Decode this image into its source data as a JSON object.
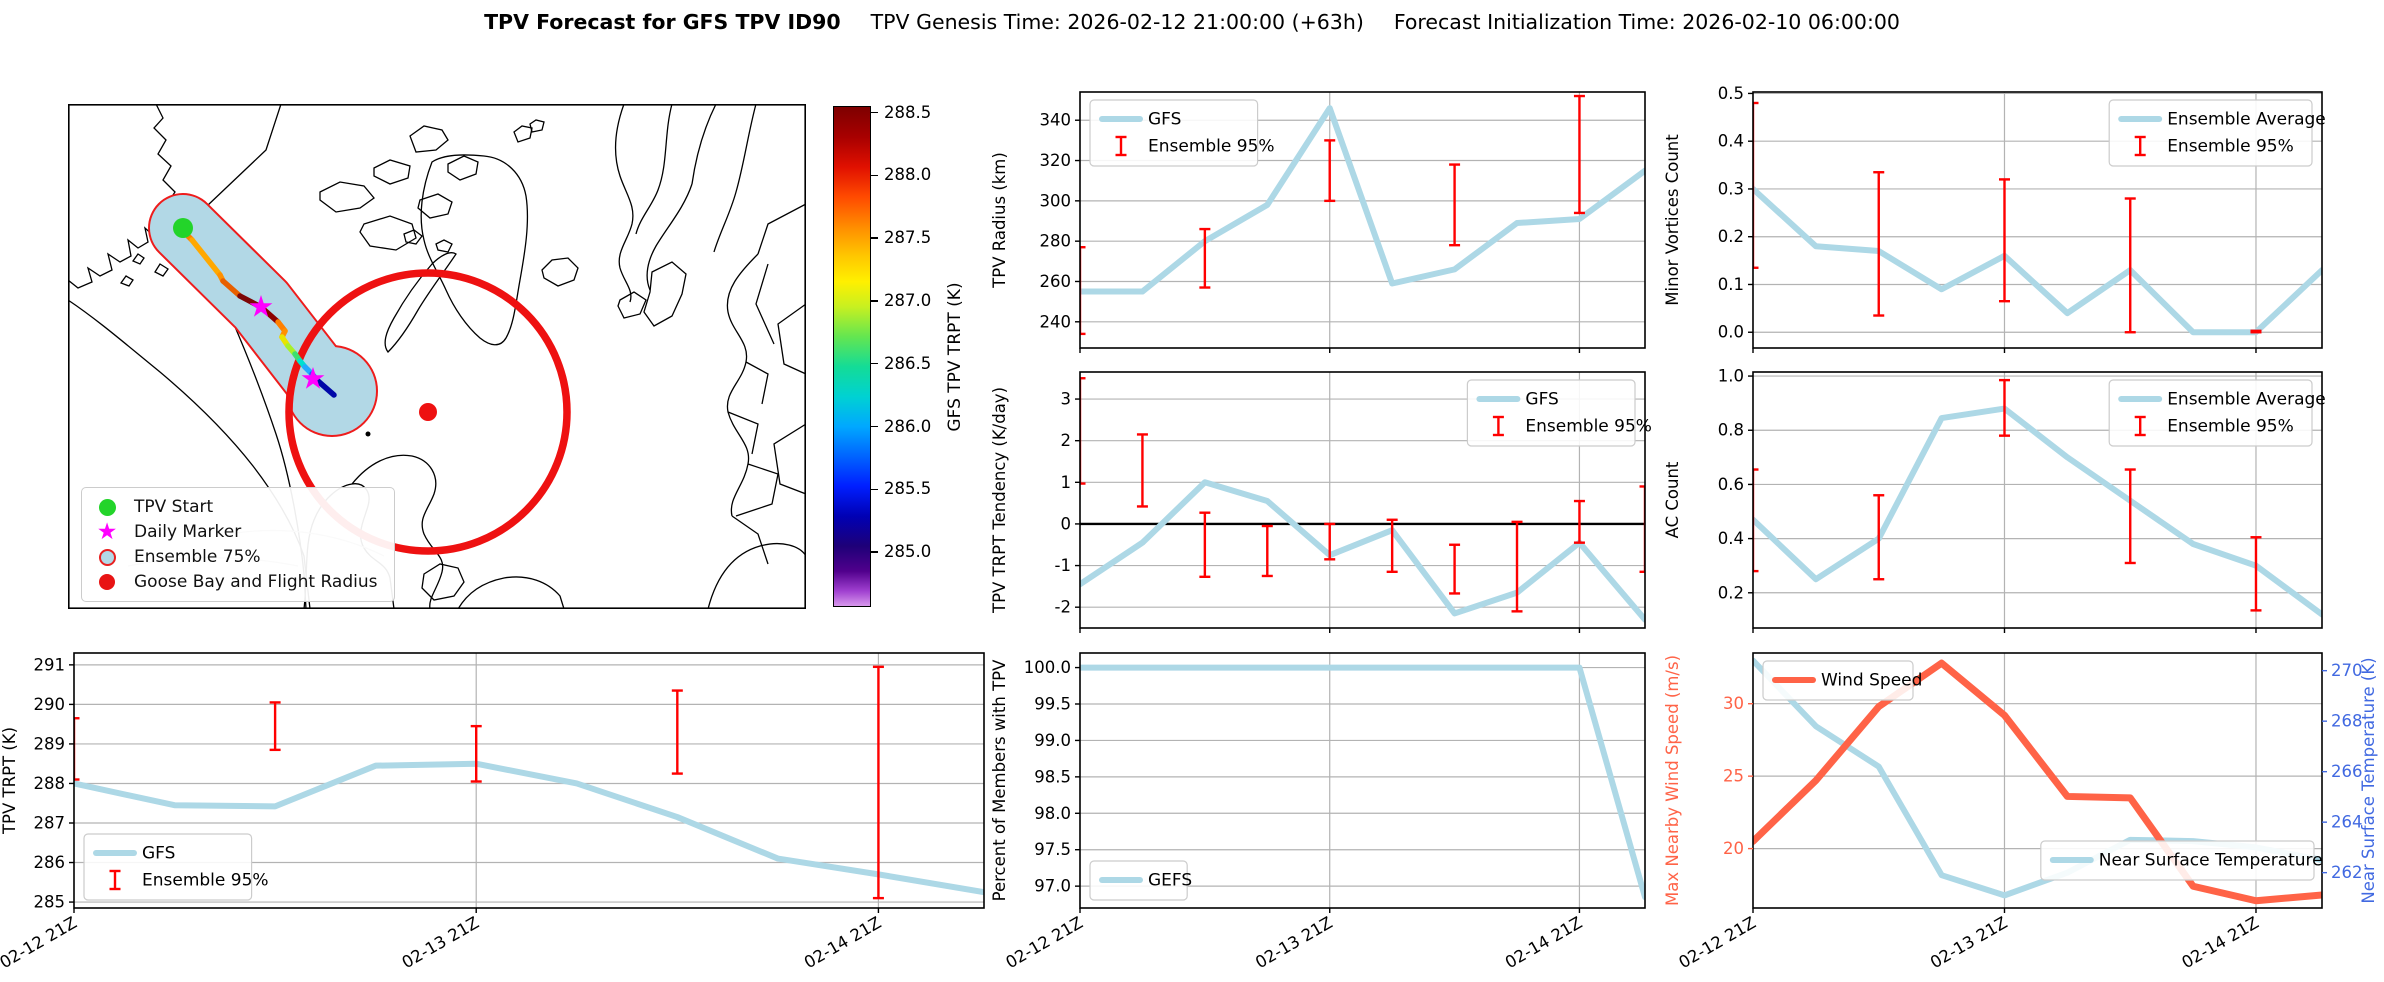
{
  "title": {
    "main": "TPV Forecast for GFS TPV ID90",
    "genesis": "TPV Genesis Time: 2026-02-12 21:00:00 (+63h)",
    "init": "Forecast Initialization Time: 2026-02-10 06:00:00"
  },
  "map": {
    "legend": [
      {
        "label": "TPV Start",
        "marker": "tpv-start-icon"
      },
      {
        "label": "Daily Marker",
        "marker": "daily-marker-icon"
      },
      {
        "label": "Ensemble 75%",
        "marker": "ensemble-75-icon"
      },
      {
        "label": "Goose Bay and Flight Radius",
        "marker": "goose-bay-icon"
      }
    ],
    "colors": {
      "tpv_start": "#23d42a",
      "daily_marker": "#ff00ff",
      "ensemble_fill": "#b2d8e6",
      "ensemble_edge": "#ff0000",
      "flight_radius": "#ee1111"
    }
  },
  "colorbar": {
    "label": "GFS TPV TRPT (K)",
    "ticks": [
      "288.5",
      "288.0",
      "287.5",
      "287.0",
      "286.5",
      "286.0",
      "285.5",
      "285.0"
    ]
  },
  "x_axis": {
    "tick_vals": [
      0,
      24,
      48
    ],
    "tick_labels": [
      "02-12 21Z",
      "02-13 21Z",
      "02-14 21Z"
    ],
    "grid_vals": [
      24,
      48
    ],
    "lim": [
      0,
      54.3
    ]
  },
  "chart_data": [
    {
      "id": "tpv_radius",
      "type": "line",
      "ylabel": "TPV Radius (km)",
      "ylim": [
        227,
        354
      ],
      "yticks": [
        "240",
        "260",
        "280",
        "300",
        "320",
        "340"
      ],
      "series": [
        {
          "name": "GFS",
          "color": "#add8e6",
          "width": 6,
          "x": [
            0,
            6,
            12,
            18,
            24,
            30,
            36,
            42,
            48,
            54.3
          ],
          "y": [
            255,
            255,
            280,
            298,
            346,
            259,
            266,
            289,
            291,
            315
          ]
        }
      ],
      "errorbars": {
        "name": "Ensemble 95%",
        "color": "#ff0000",
        "x": [
          0,
          12,
          24,
          36,
          48
        ],
        "lo": [
          234,
          257,
          300,
          278,
          294
        ],
        "hi": [
          277,
          286,
          330,
          318,
          352
        ]
      },
      "legends": [
        {
          "pos": "top-left",
          "entries": [
            {
              "label": "GFS",
              "swatch": "line",
              "color": "#add8e6"
            },
            {
              "label": "Ensemble 95%",
              "swatch": "errorbar",
              "color": "#ff0000"
            }
          ]
        }
      ],
      "show_xticklabels": false
    },
    {
      "id": "trpt_tendency",
      "type": "line",
      "ylabel": "TPV TRPT Tendency (K/day)",
      "ylim": [
        -2.5,
        3.65
      ],
      "yticks": [
        "-2",
        "-1",
        "0",
        "1",
        "2",
        "3"
      ],
      "zero_line": true,
      "series": [
        {
          "name": "GFS",
          "color": "#add8e6",
          "width": 6,
          "x": [
            0,
            6,
            12,
            18,
            24,
            30,
            36,
            42,
            48,
            54.3
          ],
          "y": [
            -1.45,
            -0.45,
            1.0,
            0.55,
            -0.75,
            -0.15,
            -2.15,
            -1.65,
            -0.45,
            -2.3
          ]
        }
      ],
      "errorbars": {
        "name": "Ensemble 95%",
        "color": "#ff0000",
        "x": [
          0,
          6,
          12,
          18,
          24,
          30,
          36,
          42,
          48,
          54.3
        ],
        "lo": [
          0.97,
          0.42,
          -1.27,
          -1.25,
          -0.85,
          -1.15,
          -1.67,
          -2.1,
          -0.45,
          -1.15
        ],
        "hi": [
          3.5,
          2.15,
          0.27,
          -0.05,
          0.0,
          0.1,
          -0.5,
          0.05,
          0.55,
          0.9
        ]
      },
      "legends": [
        {
          "pos": "top-right",
          "entries": [
            {
              "label": "GFS",
              "swatch": "line",
              "color": "#add8e6"
            },
            {
              "label": "Ensemble 95%",
              "swatch": "errorbar",
              "color": "#ff0000"
            }
          ]
        }
      ],
      "show_xticklabels": false
    },
    {
      "id": "minor_vortices",
      "type": "line",
      "ylabel": "Minor Vortices Count",
      "ylim": [
        -0.033,
        0.503
      ],
      "yticks": [
        "0.0",
        "0.1",
        "0.2",
        "0.3",
        "0.4",
        "0.5"
      ],
      "series": [
        {
          "name": "Ensemble Average",
          "color": "#add8e6",
          "width": 6,
          "x": [
            0,
            6,
            12,
            18,
            24,
            30,
            36,
            42,
            48,
            54.3
          ],
          "y": [
            0.3,
            0.18,
            0.17,
            0.09,
            0.16,
            0.04,
            0.13,
            0.0,
            0.0,
            0.13
          ]
        }
      ],
      "errorbars": {
        "name": "Ensemble 95%",
        "color": "#ff0000",
        "x": [
          0,
          12,
          24,
          36,
          48
        ],
        "lo": [
          0.135,
          0.035,
          0.065,
          0.0,
          0.0
        ],
        "hi": [
          0.48,
          0.335,
          0.32,
          0.28,
          0.003
        ]
      },
      "legends": [
        {
          "pos": "top-right",
          "entries": [
            {
              "label": "Ensemble Average",
              "swatch": "line",
              "color": "#add8e6"
            },
            {
              "label": "Ensemble 95%",
              "swatch": "errorbar",
              "color": "#ff0000"
            }
          ]
        }
      ],
      "show_xticklabels": false
    },
    {
      "id": "ac_count",
      "type": "line",
      "ylabel": "AC Count",
      "ylim": [
        0.07,
        1.015
      ],
      "yticks": [
        "0.2",
        "0.4",
        "0.6",
        "0.8",
        "1.0"
      ],
      "series": [
        {
          "name": "Ensemble Average",
          "color": "#add8e6",
          "width": 6,
          "x": [
            0,
            6,
            12,
            18,
            24,
            30,
            36,
            42,
            48,
            54.3
          ],
          "y": [
            0.47,
            0.25,
            0.4,
            0.845,
            0.88,
            0.7,
            0.54,
            0.38,
            0.3,
            0.12
          ]
        }
      ],
      "errorbars": {
        "name": "Ensemble 95%",
        "color": "#ff0000",
        "x": [
          0,
          12,
          24,
          36,
          48
        ],
        "lo": [
          0.28,
          0.25,
          0.78,
          0.31,
          0.135
        ],
        "hi": [
          0.655,
          0.56,
          0.985,
          0.655,
          0.405
        ]
      },
      "legends": [
        {
          "pos": "top-right",
          "entries": [
            {
              "label": "Ensemble Average",
              "swatch": "line",
              "color": "#add8e6"
            },
            {
              "label": "Ensemble 95%",
              "swatch": "errorbar",
              "color": "#ff0000"
            }
          ]
        }
      ],
      "show_xticklabels": false
    },
    {
      "id": "tpv_trpt",
      "type": "line",
      "ylabel": "TPV TRPT (K)",
      "ylim": [
        284.85,
        291.3
      ],
      "yticks": [
        "285",
        "286",
        "287",
        "288",
        "289",
        "290",
        "291"
      ],
      "series": [
        {
          "name": "GFS",
          "color": "#add8e6",
          "width": 6,
          "x": [
            0,
            6,
            12,
            18,
            24,
            30,
            36,
            42,
            48,
            54.3
          ],
          "y": [
            288.0,
            287.45,
            287.42,
            288.45,
            288.5,
            288.0,
            287.15,
            286.1,
            285.7,
            285.25
          ]
        }
      ],
      "errorbars": {
        "name": "Ensemble 95%",
        "color": "#ff0000",
        "x": [
          0,
          12,
          24,
          36,
          48
        ],
        "lo": [
          288.1,
          288.85,
          288.05,
          288.25,
          285.1
        ],
        "hi": [
          289.65,
          290.05,
          289.45,
          290.35,
          290.95
        ]
      },
      "legends": [
        {
          "pos": "bottom-left",
          "entries": [
            {
              "label": "GFS",
              "swatch": "line",
              "color": "#add8e6"
            },
            {
              "label": "Ensemble 95%",
              "swatch": "errorbar",
              "color": "#ff0000"
            }
          ]
        }
      ],
      "show_xticklabels": true
    },
    {
      "id": "percent_members",
      "type": "line",
      "ylabel": "Percent of Members with TPV",
      "ylim": [
        96.7,
        100.2
      ],
      "yticks": [
        "97.0",
        "97.5",
        "98.0",
        "98.5",
        "99.0",
        "99.5",
        "100.0"
      ],
      "series": [
        {
          "name": "GEFS",
          "color": "#add8e6",
          "width": 6,
          "x": [
            0,
            6,
            12,
            18,
            24,
            30,
            36,
            42,
            48,
            54.3
          ],
          "y": [
            100,
            100,
            100,
            100,
            100,
            100,
            100,
            100,
            100,
            96.85
          ]
        }
      ],
      "legends": [
        {
          "pos": "bottom-left",
          "entries": [
            {
              "label": "GEFS",
              "swatch": "line",
              "color": "#add8e6"
            }
          ]
        }
      ],
      "show_xticklabels": true
    },
    {
      "id": "wind_temp",
      "type": "line",
      "ylabel": "Max Nearby Wind Speed (m/s)",
      "ylabel_color": "#ff6347",
      "ytick_color": "#ff6347",
      "ylim": [
        15.9,
        33.5
      ],
      "yticks": [
        "20",
        "25",
        "30"
      ],
      "series": [
        {
          "name": "Near Surface Temperature",
          "color": "#add8e6",
          "width": 6,
          "axis": 2,
          "x": [
            0,
            6,
            12,
            18,
            24,
            30,
            36,
            42,
            48,
            54.3
          ],
          "y": [
            270.4,
            267.8,
            266.2,
            261.9,
            261.1,
            262.0,
            263.3,
            263.25,
            263.0,
            262.5
          ]
        },
        {
          "name": "Wind Speed",
          "color": "#ff6347",
          "width": 7,
          "x": [
            0,
            6,
            12,
            18,
            24,
            30,
            36,
            42,
            48,
            54.3
          ],
          "y": [
            20.5,
            24.7,
            29.8,
            32.8,
            29.2,
            23.6,
            23.5,
            17.4,
            16.4,
            16.8
          ]
        }
      ],
      "axis2": {
        "ylabel": "Near Surface Temperature (K)",
        "color": "#4169e1",
        "ylim": [
          260.6,
          270.7
        ],
        "yticks": [
          "262",
          "264",
          "266",
          "268",
          "270"
        ]
      },
      "legends": [
        {
          "pos": "top-left",
          "entries": [
            {
              "label": "Wind Speed",
              "swatch": "line",
              "color": "#ff6347"
            }
          ]
        },
        {
          "pos": "bottom-right",
          "entries": [
            {
              "label": "Near Surface Temperature",
              "swatch": "line",
              "color": "#add8e6"
            }
          ]
        }
      ],
      "show_xticklabels": true
    }
  ]
}
